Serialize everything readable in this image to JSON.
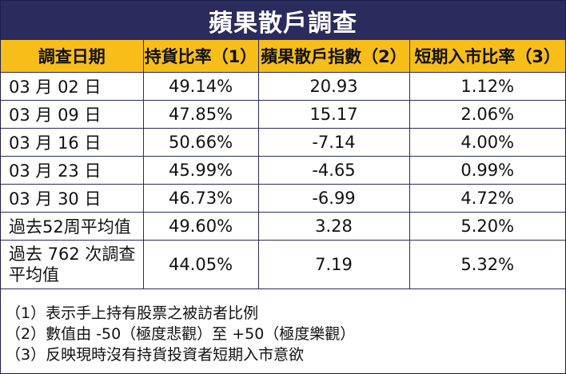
{
  "title": "蘋果散戶調查",
  "columns": [
    "調查日期",
    "持貨比率（1）",
    "蘋果散戶指數（2）",
    "短期入市比率（3）"
  ],
  "rows": [
    {
      "date": "03 月 02 日",
      "holding": "49.14%",
      "index": "20.93",
      "entry": "1.12%"
    },
    {
      "date": "03 月 09 日",
      "holding": "47.85%",
      "index": "15.17",
      "entry": "2.06%"
    },
    {
      "date": "03 月 16 日",
      "holding": "50.66%",
      "index": "-7.14",
      "entry": "4.00%"
    },
    {
      "date": "03 月 23 日",
      "holding": "45.99%",
      "index": "-4.65",
      "entry": "0.99%"
    },
    {
      "date": "03 月 30 日",
      "holding": "46.73%",
      "index": "-6.99",
      "entry": "4.72%"
    },
    {
      "date": "過去52周平均值",
      "holding": "49.60%",
      "index": "3.28",
      "entry": "5.20%"
    },
    {
      "date": "過去 762 次調查平均值",
      "holding": "44.05%",
      "index": "7.19",
      "entry": "5.32%"
    }
  ],
  "notes": [
    "（1）表示手上持有股票之被訪者比例",
    "（2）數值由 -50（極度悲觀）至 +50（極度樂觀）",
    "（3）反映現時沒有持貨投資者短期入市意欲"
  ],
  "colors": {
    "title_bg": "#2b2b5e",
    "header_bg": "#f7be1a",
    "border": "#2b2b5e"
  }
}
